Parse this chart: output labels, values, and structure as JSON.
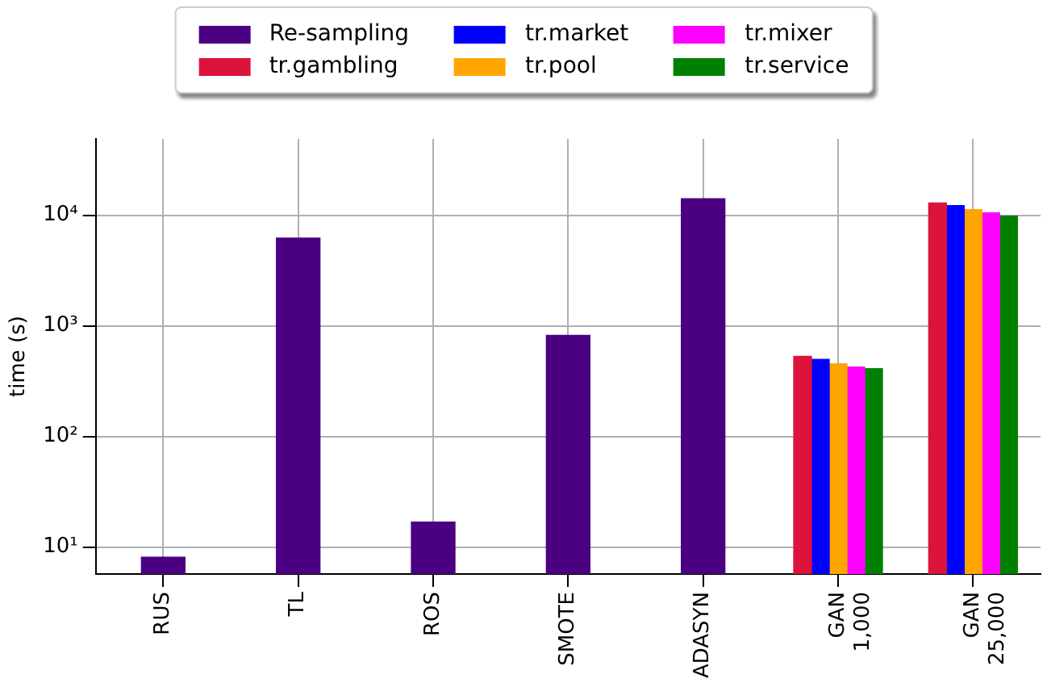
{
  "chart_data": {
    "type": "bar",
    "ylabel": "time (s)",
    "categories": [
      "RUS",
      "TL",
      "ROS",
      "SMOTE",
      "ADASYN",
      "GAN\n1,000",
      "GAN\n25,000"
    ],
    "series": [
      {
        "name": "Re-sampling",
        "color": "#4b0082",
        "values": [
          8.1,
          6200,
          16.8,
          820,
          14100,
          null,
          null
        ]
      },
      {
        "name": "tr.gambling",
        "color": "#dc143c",
        "values": [
          null,
          null,
          null,
          null,
          null,
          530,
          12900
        ]
      },
      {
        "name": "tr.market",
        "color": "#0000ff",
        "values": [
          null,
          null,
          null,
          null,
          null,
          497,
          12200
        ]
      },
      {
        "name": "tr.pool",
        "color": "#ffa500",
        "values": [
          null,
          null,
          null,
          null,
          null,
          454,
          11250
        ]
      },
      {
        "name": "tr.mixer",
        "color": "#ff00ff",
        "values": [
          null,
          null,
          null,
          null,
          null,
          424,
          10500
        ]
      },
      {
        "name": "tr.service",
        "color": "#008000",
        "values": [
          null,
          null,
          null,
          null,
          null,
          409,
          9800
        ]
      }
    ],
    "log": true,
    "ylim": [
      5.7,
      49000
    ],
    "yticks": [
      {
        "value": 10,
        "label": "10¹"
      },
      {
        "value": 100,
        "label": "10²"
      },
      {
        "value": 1000,
        "label": "10³"
      },
      {
        "value": 10000,
        "label": "10⁴"
      }
    ],
    "grid": true,
    "legend": "top"
  }
}
